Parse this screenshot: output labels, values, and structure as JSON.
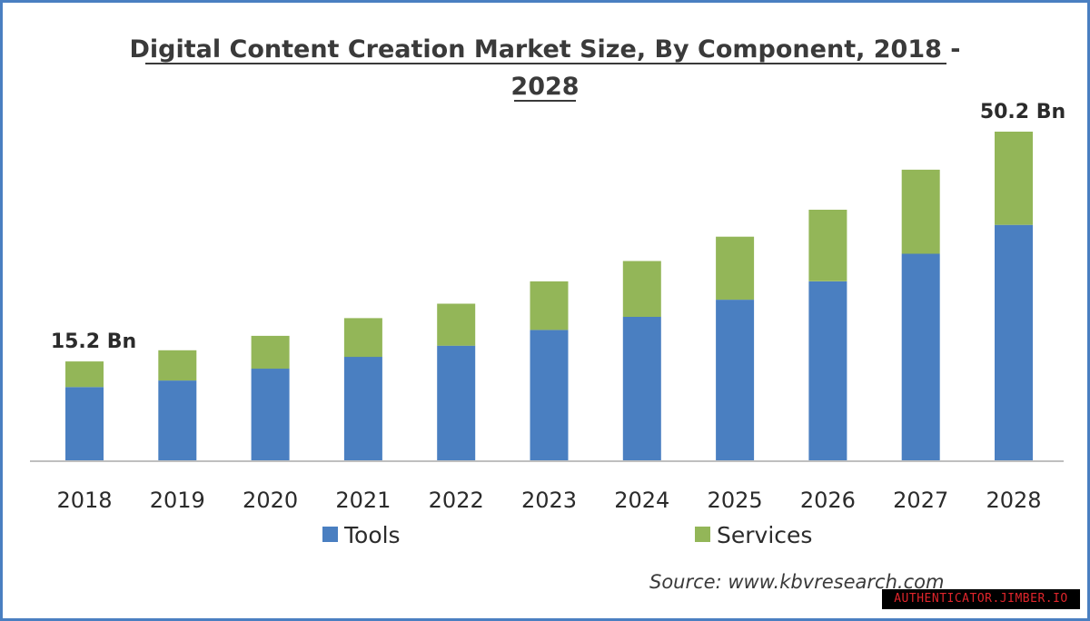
{
  "chart_data": {
    "type": "bar",
    "stacked": true,
    "title_line1": "Digital Content Creation Market Size, By Component, 2018 -",
    "title_line2": "2028",
    "categories": [
      "2018",
      "2019",
      "2020",
      "2021",
      "2022",
      "2023",
      "2024",
      "2025",
      "2026",
      "2027",
      "2028"
    ],
    "series": [
      {
        "name": "Tools",
        "color": "#4a7fc1",
        "values": [
          11.3,
          12.3,
          14.1,
          15.9,
          17.6,
          20.0,
          22.0,
          24.6,
          27.4,
          31.6,
          36.0
        ]
      },
      {
        "name": "Services",
        "color": "#93b658",
        "values": [
          3.9,
          4.6,
          5.0,
          5.9,
          6.4,
          7.4,
          8.5,
          9.6,
          10.9,
          12.8,
          14.2
        ]
      }
    ],
    "annotations": [
      {
        "category": "2018",
        "text": "15.2 Bn"
      },
      {
        "category": "2028",
        "text": "50.2 Bn"
      }
    ],
    "ylim": [
      0,
      50.2
    ],
    "grid": false,
    "legend_position": "bottom",
    "source": "Source:  www.kbvresearch.com"
  },
  "watermark": "AUTHENTICATOR.JIMBER.IO"
}
